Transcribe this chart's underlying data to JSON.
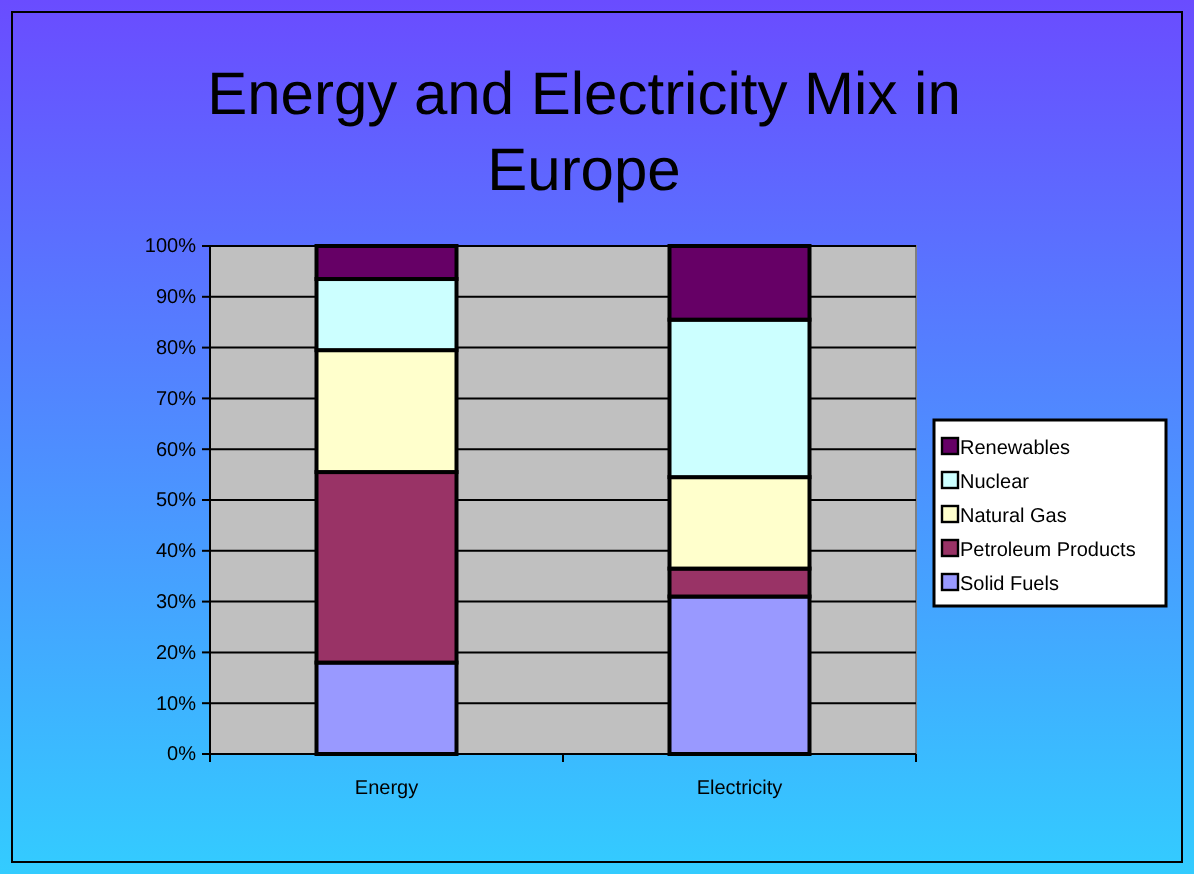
{
  "chart_data": {
    "type": "bar",
    "title": "Energy and Electricity Mix in Europe",
    "categories": [
      "Energy",
      "Electricity"
    ],
    "stacked": true,
    "series": [
      {
        "name": "Solid Fuels",
        "color": "#9999ff",
        "values": [
          18,
          31
        ]
      },
      {
        "name": "Petroleum Products",
        "color": "#993366",
        "values": [
          37.5,
          5.5
        ]
      },
      {
        "name": "Natural Gas",
        "color": "#ffffcc",
        "values": [
          24,
          18
        ]
      },
      {
        "name": "Nuclear",
        "color": "#ccffff",
        "values": [
          14,
          31
        ]
      },
      {
        "name": "Renewables",
        "color": "#660066",
        "values": [
          6.5,
          14.5
        ]
      }
    ],
    "ylim": [
      0,
      100
    ],
    "yticks": [
      {
        "value": 0,
        "label": "0%"
      },
      {
        "value": 10,
        "label": "10%"
      },
      {
        "value": 20,
        "label": "20%"
      },
      {
        "value": 30,
        "label": "30%"
      },
      {
        "value": 40,
        "label": "40%"
      },
      {
        "value": 50,
        "label": "50%"
      },
      {
        "value": 60,
        "label": "60%"
      },
      {
        "value": 70,
        "label": "70%"
      },
      {
        "value": 80,
        "label": "80%"
      },
      {
        "value": 90,
        "label": "90%"
      },
      {
        "value": 100,
        "label": "100%"
      }
    ],
    "grid": "y",
    "legend": "right"
  }
}
